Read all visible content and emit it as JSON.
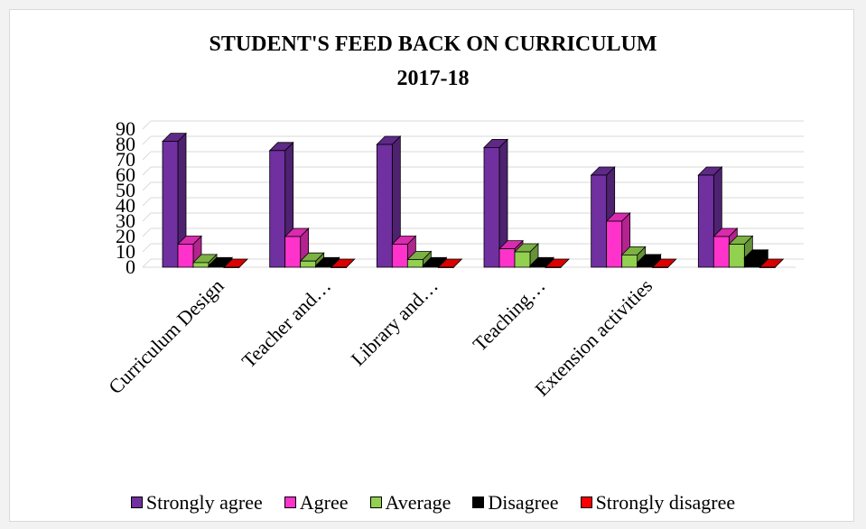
{
  "chart_data": {
    "type": "bar",
    "title": "STUDENT'S FEED BACK ON CURRICULUM",
    "subtitle": "2017-18",
    "categories": [
      "Curriculum Design",
      "Teacher and…",
      "Library and…",
      "Teaching…",
      "Extension activities",
      ""
    ],
    "series": [
      {
        "name": "Strongly agree",
        "color": "#7030a0",
        "values": [
          82,
          76,
          80,
          78,
          60,
          60
        ]
      },
      {
        "name": "Agree",
        "color": "#ff33cc",
        "values": [
          15,
          20,
          15,
          12,
          30,
          20
        ]
      },
      {
        "name": "Average",
        "color": "#92d050",
        "values": [
          3,
          4,
          5,
          10,
          8,
          15
        ]
      },
      {
        "name": "Disagree",
        "color": "#000000",
        "values": [
          1,
          1,
          1,
          1,
          3,
          6
        ]
      },
      {
        "name": "Strongly disagree",
        "color": "#ff0000",
        "values": [
          0,
          0,
          0,
          0,
          0,
          0
        ]
      }
    ],
    "ylim": [
      0,
      90
    ],
    "yticks": [
      0,
      10,
      20,
      30,
      40,
      50,
      60,
      70,
      80,
      90
    ],
    "grid": true,
    "legend_position": "bottom",
    "bar_style": "3d"
  }
}
